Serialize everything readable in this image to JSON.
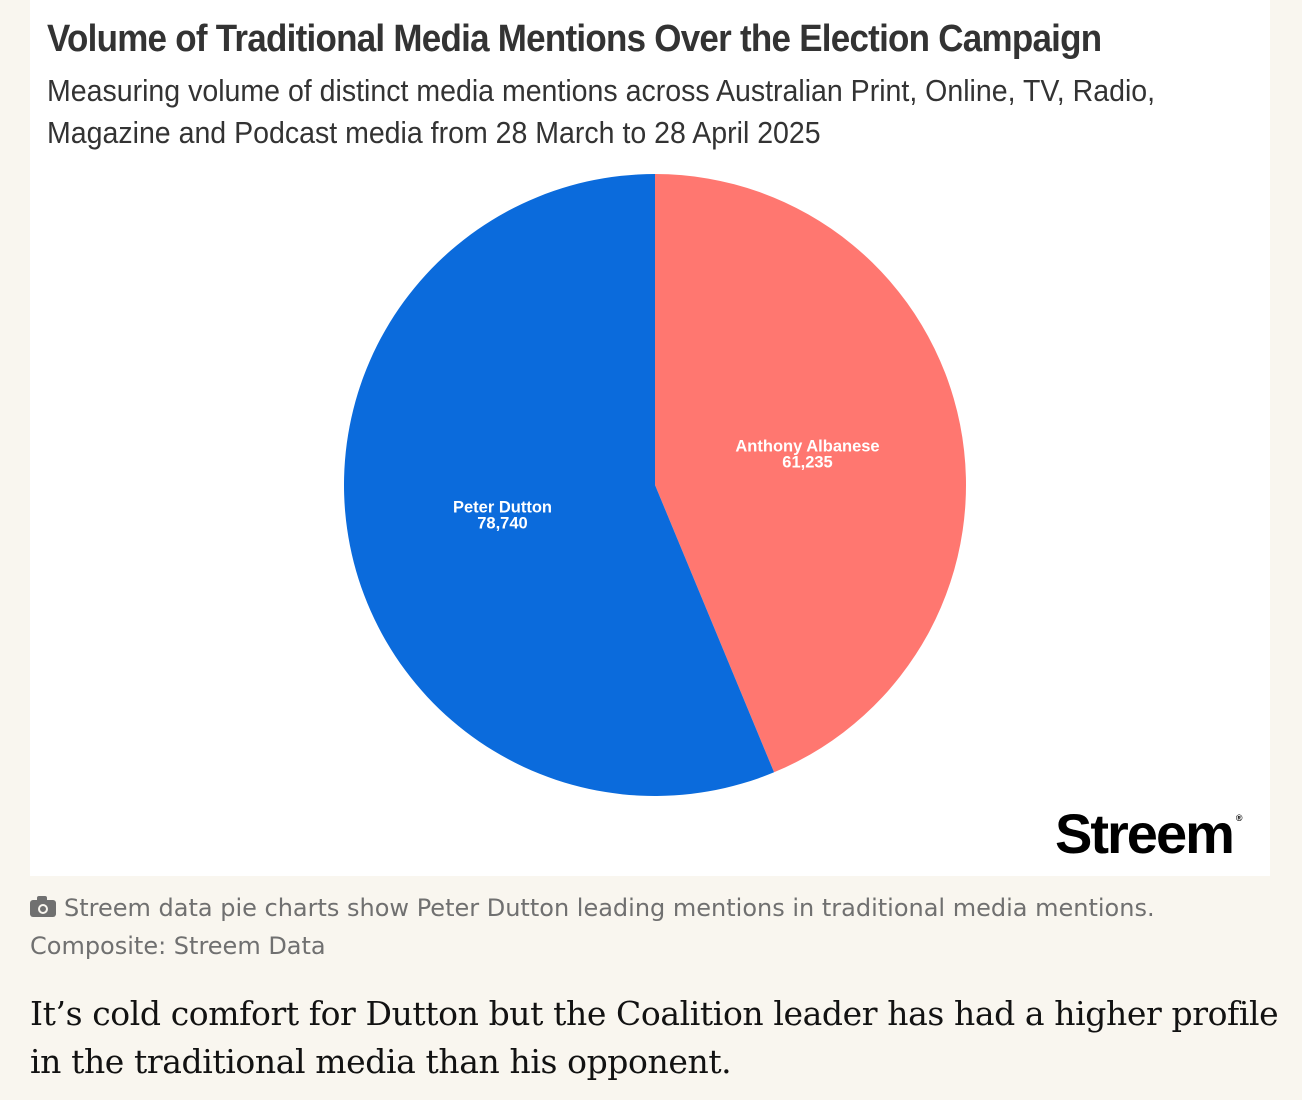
{
  "chart_data": {
    "type": "pie",
    "title": "Volume of Traditional Media Mentions Over the Election Campaign",
    "subtitle": "Measuring volume of distinct media mentions across Australian Print, Online, TV, Radio, Magazine and Podcast media from 28 March to 28 April 2025",
    "slices": [
      {
        "label": "Anthony Albanese",
        "value": 61235,
        "value_label": "61,235",
        "color": "#ff7770"
      },
      {
        "label": "Peter Dutton",
        "value": 78740,
        "value_label": "78,740",
        "color": "#0b6bdc"
      }
    ]
  },
  "brand": {
    "name": "Streem",
    "mark": "®"
  },
  "caption": {
    "icon": "camera-icon",
    "text": "Streem data pie charts show Peter Dutton leading mentions in traditional media mentions.",
    "credit": "Composite: Streem Data"
  },
  "article": {
    "paragraph": "It’s cold comfort for Dutton but the Coalition leader has had a higher profile in the traditional media than his opponent."
  }
}
